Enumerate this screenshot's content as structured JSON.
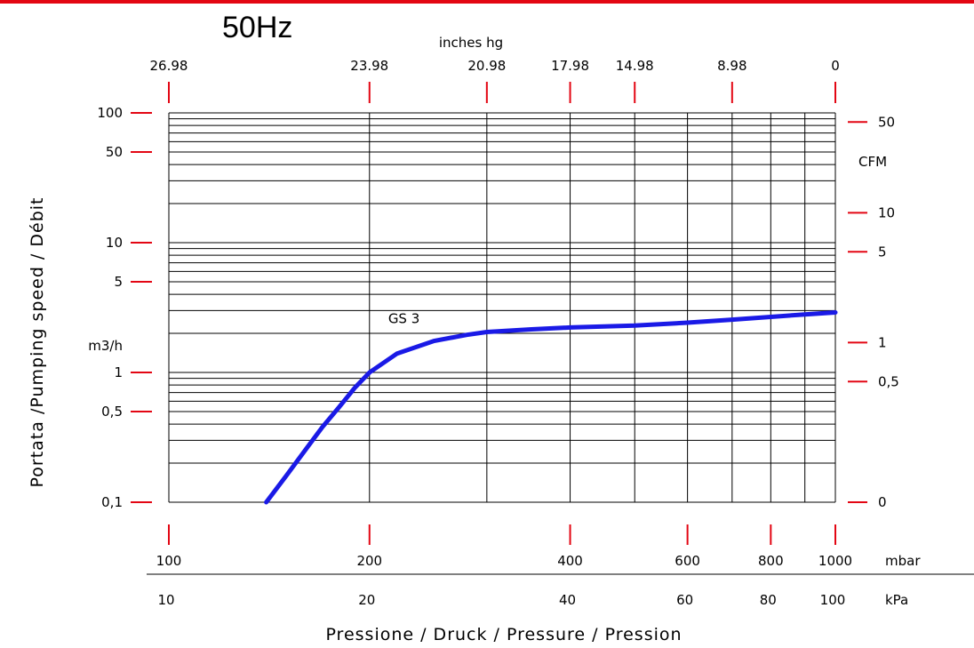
{
  "title": "50Hz",
  "chart_data": {
    "type": "line",
    "title": "50Hz",
    "xlabel": "Pressione / Druck / Pressure / Pression",
    "ylabel": "Portata /Pumping speed / Débit",
    "x_scale": "log",
    "y_scale": "log",
    "xlim_mbar": [
      100,
      1000
    ],
    "ylim_m3h": [
      0.1,
      100
    ],
    "grid": true,
    "x_top": {
      "label": "inches hg",
      "ticks": [
        {
          "mbar": 100,
          "label": "26.98"
        },
        {
          "mbar": 200,
          "label": "23.98"
        },
        {
          "mbar": 300,
          "label": "20.98"
        },
        {
          "mbar": 400,
          "label": "17.98"
        },
        {
          "mbar": 500,
          "label": "14.98"
        },
        {
          "mbar": 700,
          "label": "8.98"
        },
        {
          "mbar": 1000,
          "label": "0"
        }
      ]
    },
    "x_bottom_mbar": {
      "unit": "mbar",
      "ticks": [
        {
          "mbar": 100,
          "label": "100"
        },
        {
          "mbar": 200,
          "label": "200"
        },
        {
          "mbar": 400,
          "label": "400"
        },
        {
          "mbar": 600,
          "label": "600"
        },
        {
          "mbar": 800,
          "label": "800"
        },
        {
          "mbar": 1000,
          "label": "1000"
        }
      ]
    },
    "x_bottom_kpa": {
      "unit": "kPa",
      "ticks": [
        {
          "mbar": 100,
          "label": "10"
        },
        {
          "mbar": 200,
          "label": "20"
        },
        {
          "mbar": 400,
          "label": "40"
        },
        {
          "mbar": 600,
          "label": "60"
        },
        {
          "mbar": 800,
          "label": "80"
        },
        {
          "mbar": 1000,
          "label": "100"
        }
      ]
    },
    "y_left": {
      "unit": "m3/h",
      "ticks": [
        {
          "value": 100,
          "label": "100"
        },
        {
          "value": 50,
          "label": "50"
        },
        {
          "value": 10,
          "label": "10"
        },
        {
          "value": 5,
          "label": "5"
        },
        {
          "value": 1,
          "label": "1"
        },
        {
          "value": 0.5,
          "label": "0,5"
        },
        {
          "value": 0.1,
          "label": "0,1"
        }
      ]
    },
    "y_right": {
      "unit": "CFM",
      "ticks": [
        {
          "value": 85,
          "label": "50"
        },
        {
          "value": 17,
          "label": "10"
        },
        {
          "value": 8.5,
          "label": "5"
        },
        {
          "value": 1.7,
          "label": "1"
        },
        {
          "value": 0.85,
          "label": "0,5"
        },
        {
          "value": 0.1,
          "label": "0"
        }
      ]
    },
    "series": [
      {
        "name": "GS 3",
        "color": "#1a1ae6",
        "x_mbar": [
          140,
          150,
          160,
          170,
          180,
          190,
          200,
          220,
          250,
          280,
          300,
          350,
          400,
          500,
          600,
          700,
          800,
          900,
          1000
        ],
        "y_m3h": [
          0.1,
          0.16,
          0.25,
          0.38,
          0.54,
          0.76,
          1.0,
          1.4,
          1.75,
          1.95,
          2.05,
          2.15,
          2.22,
          2.3,
          2.42,
          2.55,
          2.68,
          2.8,
          2.9
        ]
      }
    ]
  }
}
